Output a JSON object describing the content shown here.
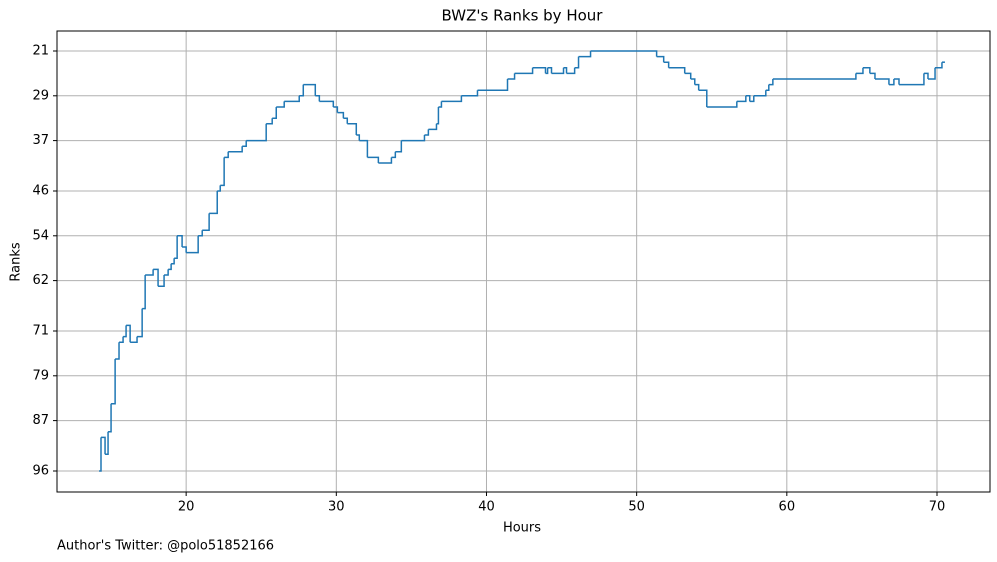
{
  "chart_data": {
    "type": "line",
    "drawstyle": "steps-post",
    "title": "BWZ's Ranks by Hour",
    "x_label": "Hours",
    "y_label": "Ranks",
    "annotation": "Author's Twitter: @polo51852166",
    "x": [
      14.2,
      14.33,
      14.6,
      14.8,
      15.0,
      15.27,
      15.53,
      15.8,
      16.0,
      16.27,
      16.73,
      17.07,
      17.27,
      17.8,
      18.13,
      18.53,
      18.8,
      19.0,
      19.2,
      19.4,
      19.73,
      20.0,
      20.8,
      21.07,
      21.53,
      22.07,
      22.27,
      22.53,
      22.8,
      23.73,
      24.0,
      25.33,
      25.73,
      26.0,
      26.53,
      27.53,
      27.8,
      28.6,
      28.87,
      29.8,
      30.07,
      30.47,
      30.73,
      31.33,
      31.53,
      32.07,
      32.8,
      33.67,
      33.93,
      34.33,
      35.87,
      36.13,
      36.67,
      36.8,
      37.0,
      38.33,
      39.4,
      41.4,
      41.87,
      43.07,
      43.93,
      44.07,
      44.33,
      45.13,
      45.33,
      45.87,
      46.13,
      46.93,
      51.33,
      51.8,
      52.13,
      53.2,
      53.6,
      53.87,
      54.13,
      54.67,
      56.67,
      57.27,
      57.53,
      57.8,
      58.6,
      58.8,
      59.07,
      64.6,
      65.07,
      65.53,
      65.87,
      66.8,
      67.13,
      67.47,
      69.13,
      69.4,
      69.87,
      70.33,
      70.53
    ],
    "series": [
      {
        "name": "BWZ",
        "color": "#1f77b4",
        "values": [
          96,
          90,
          93,
          89,
          84,
          76,
          73,
          72,
          70,
          73,
          72,
          67,
          61,
          60,
          63,
          61,
          60,
          59,
          58,
          54,
          56,
          57,
          54,
          53,
          50,
          46,
          45,
          40,
          39,
          38,
          37,
          34,
          33,
          31,
          30,
          29,
          27,
          29,
          30,
          31,
          32,
          33,
          34,
          36,
          37,
          40,
          41,
          40,
          39,
          37,
          36,
          35,
          34,
          31,
          30,
          29,
          28,
          26,
          25,
          24,
          25,
          24,
          25,
          24,
          25,
          24,
          22,
          21,
          22,
          23,
          24,
          25,
          26,
          27,
          28,
          31,
          30,
          29,
          30,
          29,
          28,
          27,
          26,
          25,
          24,
          25,
          26,
          27,
          26,
          27,
          25,
          26,
          24,
          23,
          23
        ]
      }
    ],
    "xlim": [
      11.4,
      73.53
    ],
    "ylim": [
      17.43,
      99.75
    ],
    "y_inverted": true,
    "xticks": [
      20,
      30,
      40,
      50,
      60,
      70
    ],
    "yticks": [
      21,
      29,
      37,
      46,
      54,
      62,
      71,
      79,
      87,
      96
    ],
    "grid": true
  }
}
